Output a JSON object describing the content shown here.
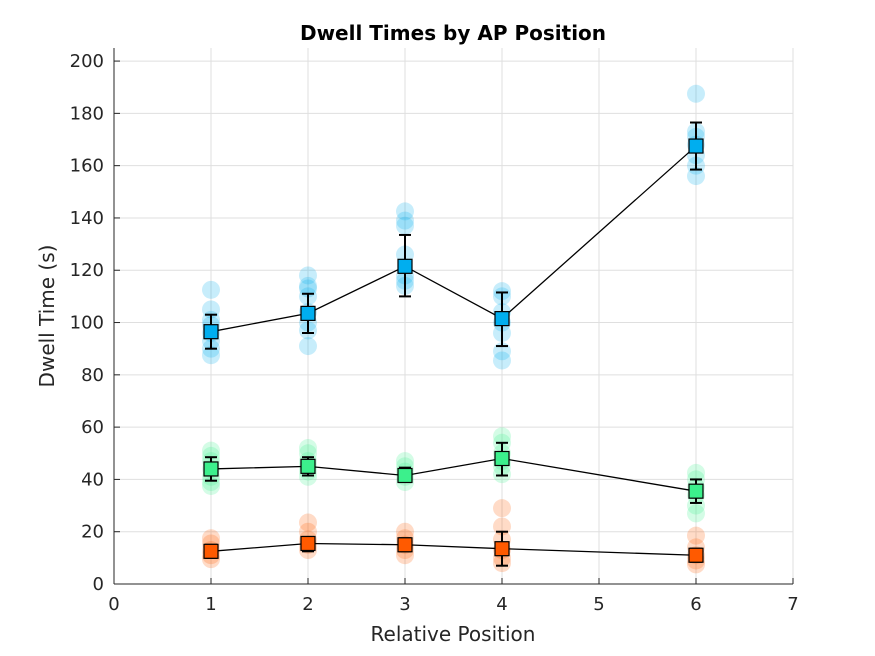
{
  "chart_data": {
    "type": "scatter",
    "title": "Dwell Times by AP Position",
    "xlabel": "Relative Position",
    "ylabel": "Dwell Time (s)",
    "xlim": [
      0,
      7
    ],
    "ylim": [
      0,
      205
    ],
    "xticks": [
      0,
      1,
      2,
      3,
      4,
      5,
      6,
      7
    ],
    "yticks": [
      0,
      20,
      40,
      60,
      80,
      100,
      120,
      140,
      160,
      180,
      200
    ],
    "grid": true,
    "series": [
      {
        "color": "#00aeef",
        "x": [
          1,
          2,
          3,
          4,
          6
        ],
        "mean": [
          96.5,
          103.5,
          121.5,
          101.5,
          167.5
        ],
        "err_low": [
          90,
          96,
          110,
          91,
          158.5
        ],
        "err_high": [
          103,
          111,
          133.5,
          111.5,
          176.5
        ],
        "points": [
          [
            1,
            112.5
          ],
          [
            1,
            105
          ],
          [
            1,
            101
          ],
          [
            1,
            99
          ],
          [
            1,
            96
          ],
          [
            1,
            93
          ],
          [
            1,
            90
          ],
          [
            1,
            87.5
          ],
          [
            2,
            118
          ],
          [
            2,
            114
          ],
          [
            2,
            113
          ],
          [
            2,
            110
          ],
          [
            2,
            104
          ],
          [
            2,
            100
          ],
          [
            2,
            97
          ],
          [
            2,
            91
          ],
          [
            3,
            142.5
          ],
          [
            3,
            139
          ],
          [
            3,
            137
          ],
          [
            3,
            126
          ],
          [
            3,
            118
          ],
          [
            3,
            116
          ],
          [
            3,
            114
          ],
          [
            4,
            112
          ],
          [
            4,
            110
          ],
          [
            4,
            104
          ],
          [
            4,
            100
          ],
          [
            4,
            96
          ],
          [
            4,
            89
          ],
          [
            4,
            85.5
          ],
          [
            6,
            187.5
          ],
          [
            6,
            173
          ],
          [
            6,
            171
          ],
          [
            6,
            168
          ],
          [
            6,
            164
          ],
          [
            6,
            160
          ],
          [
            6,
            156
          ]
        ]
      },
      {
        "color": "#3cf08c",
        "x": [
          1,
          2,
          3,
          4,
          6
        ],
        "mean": [
          44,
          45,
          41.5,
          48,
          35.5
        ],
        "err_low": [
          39.5,
          41.5,
          39.5,
          41.5,
          31
        ],
        "err_high": [
          48.5,
          48.5,
          44.5,
          54,
          40
        ],
        "points": [
          [
            1,
            51
          ],
          [
            1,
            49
          ],
          [
            1,
            47
          ],
          [
            1,
            44
          ],
          [
            1,
            41
          ],
          [
            1,
            39
          ],
          [
            1,
            37.5
          ],
          [
            2,
            52
          ],
          [
            2,
            50
          ],
          [
            2,
            47
          ],
          [
            2,
            45
          ],
          [
            2,
            43
          ],
          [
            2,
            41
          ],
          [
            3,
            47
          ],
          [
            3,
            45
          ],
          [
            3,
            43
          ],
          [
            3,
            41
          ],
          [
            3,
            39
          ],
          [
            4,
            56.5
          ],
          [
            4,
            54
          ],
          [
            4,
            50
          ],
          [
            4,
            47
          ],
          [
            4,
            45
          ],
          [
            4,
            42
          ],
          [
            6,
            42.5
          ],
          [
            6,
            40
          ],
          [
            6,
            37
          ],
          [
            6,
            34
          ],
          [
            6,
            30
          ],
          [
            6,
            27
          ]
        ]
      },
      {
        "color": "#ff5a00",
        "x": [
          1,
          2,
          3,
          4,
          6
        ],
        "mean": [
          12.5,
          15.5,
          15,
          13.5,
          11
        ],
        "err_low": [
          10,
          12.5,
          12.5,
          7,
          8.5
        ],
        "err_high": [
          15,
          18,
          17.5,
          20,
          13.5
        ],
        "points": [
          [
            1,
            17.5
          ],
          [
            1,
            15.5
          ],
          [
            1,
            13
          ],
          [
            1,
            11
          ],
          [
            1,
            9.5
          ],
          [
            2,
            23.5
          ],
          [
            2,
            20
          ],
          [
            2,
            17
          ],
          [
            2,
            15
          ],
          [
            2,
            13
          ],
          [
            3,
            20
          ],
          [
            3,
            17.5
          ],
          [
            3,
            15
          ],
          [
            3,
            13
          ],
          [
            3,
            11
          ],
          [
            4,
            29
          ],
          [
            4,
            22
          ],
          [
            4,
            17
          ],
          [
            4,
            13
          ],
          [
            4,
            10
          ],
          [
            4,
            8
          ],
          [
            6,
            18.5
          ],
          [
            6,
            14
          ],
          [
            6,
            11
          ],
          [
            6,
            9
          ],
          [
            6,
            7.5
          ]
        ]
      }
    ]
  }
}
